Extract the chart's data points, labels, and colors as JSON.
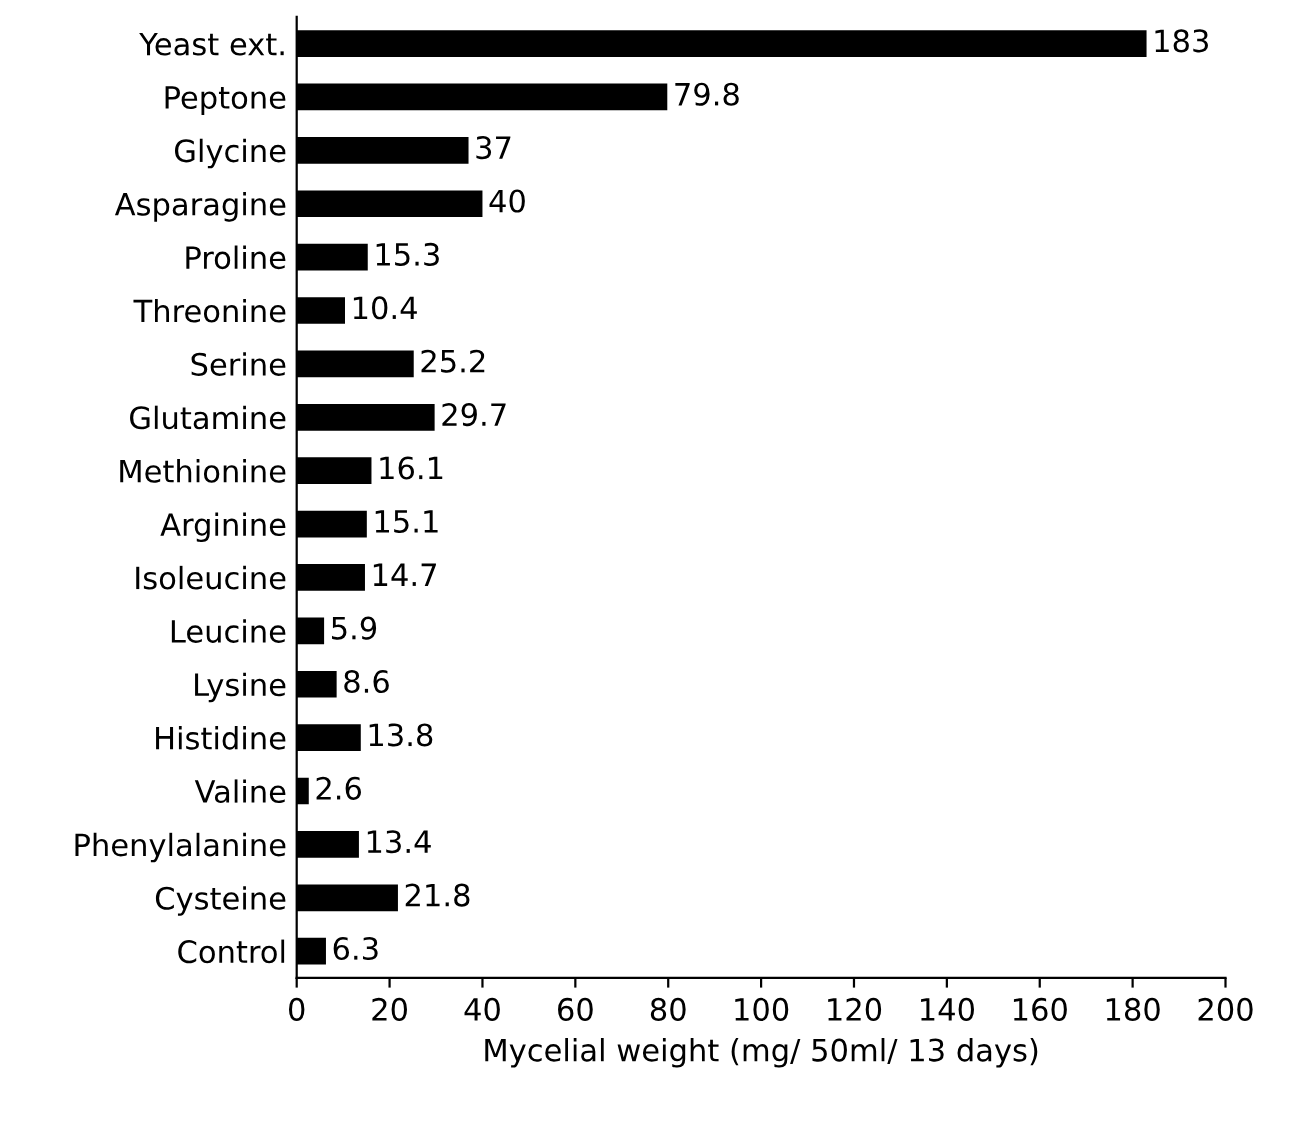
{
  "chart_data": {
    "type": "bar",
    "orientation": "horizontal",
    "xlabel": "Mycelial weight (mg/ 50ml/ 13 days)",
    "categories": [
      "Yeast ext.",
      "Peptone",
      "Glycine",
      "Asparagine",
      "Proline",
      "Threonine",
      "Serine",
      "Glutamine",
      "Methionine",
      "Arginine",
      "Isoleucine",
      "Leucine",
      "Lysine",
      "Histidine",
      "Valine",
      "Phenylalanine",
      "Cysteine",
      "Control"
    ],
    "values": [
      183,
      79.8,
      37,
      40,
      15.3,
      10.4,
      25.2,
      29.7,
      16.1,
      15.1,
      14.7,
      5.9,
      8.6,
      13.8,
      2.6,
      13.4,
      21.8,
      6.3
    ],
    "color": "#000000",
    "data_labels": true,
    "xlim": [
      0,
      200
    ],
    "xticks": [
      0,
      20,
      40,
      60,
      80,
      100,
      120,
      140,
      160,
      180,
      200
    ],
    "grid": false,
    "legend": false
  }
}
